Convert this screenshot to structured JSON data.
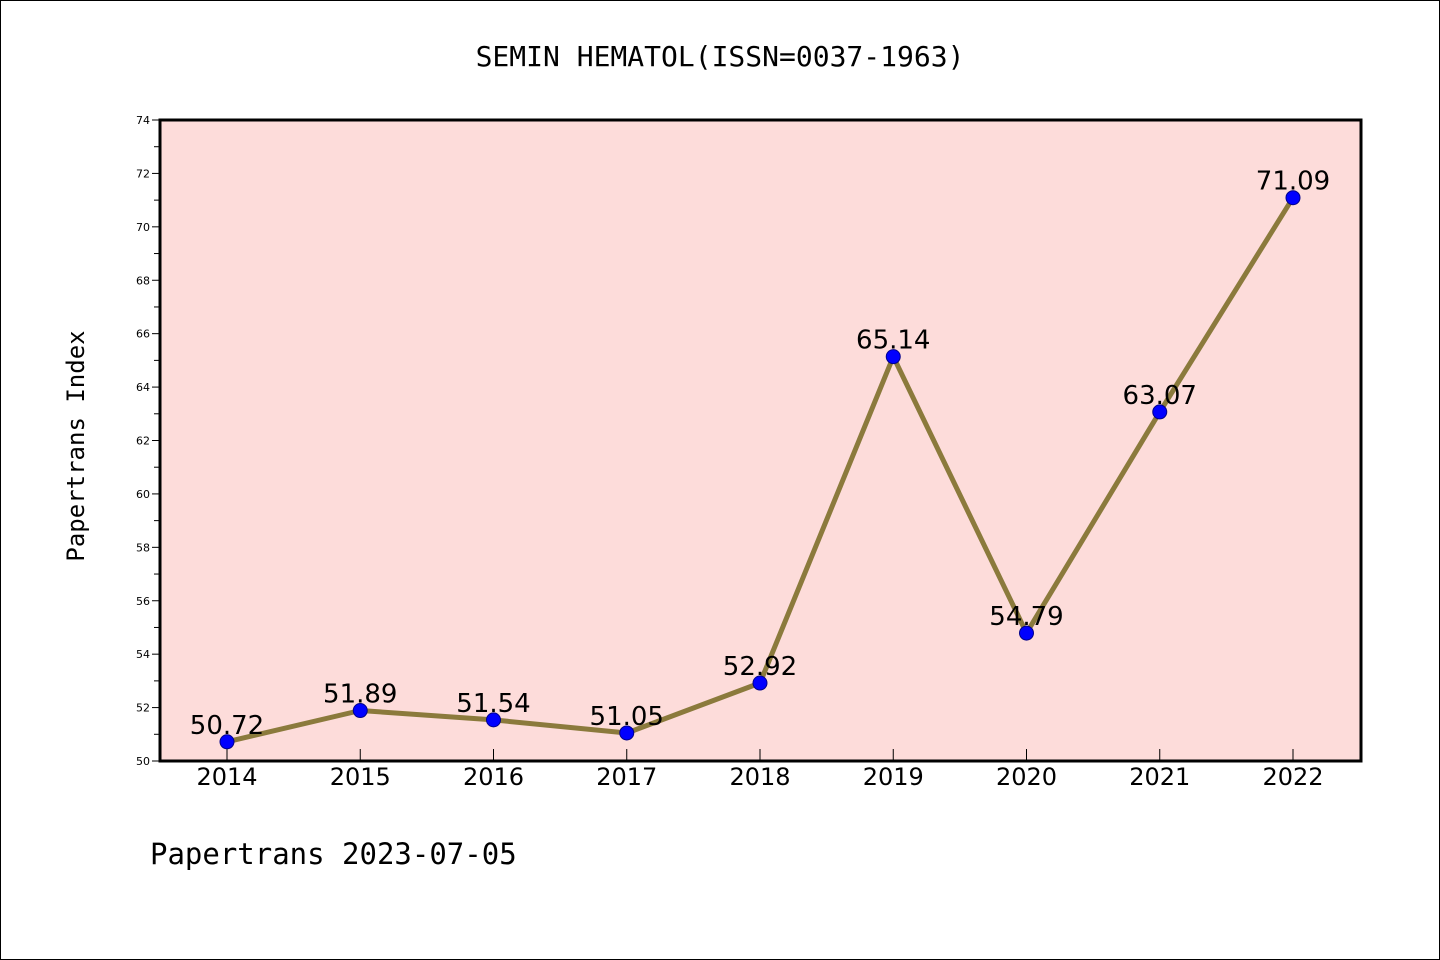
{
  "chart_data": {
    "type": "line",
    "title": "SEMIN HEMATOL(ISSN=0037-1963)",
    "xlabel": "",
    "ylabel": "Papertrans Index",
    "x": [
      "2014",
      "2015",
      "2016",
      "2017",
      "2018",
      "2019",
      "2020",
      "2021",
      "2022"
    ],
    "series": [
      {
        "values": [
          50.72,
          51.89,
          51.54,
          51.05,
          52.92,
          65.14,
          54.79,
          63.07,
          71.09
        ],
        "labels": [
          "50.72",
          "51.89",
          "51.54",
          "51.05",
          "52.92",
          "65.14",
          "54.79",
          "63.07",
          "71.09"
        ]
      }
    ],
    "ylim": [
      50,
      74
    ],
    "yticks": [
      "50",
      "52",
      "54",
      "56",
      "58",
      "60",
      "62",
      "64",
      "66",
      "68",
      "70",
      "72",
      "74"
    ],
    "grid": false,
    "colors": {
      "plot_background": "#fddcda",
      "line": "#8b7a3c",
      "marker": "#0000ff"
    }
  },
  "footer": "Papertrans 2023-07-05"
}
